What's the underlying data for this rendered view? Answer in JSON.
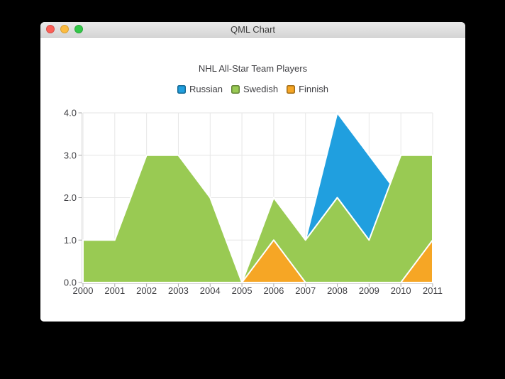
{
  "window": {
    "title": "QML Chart",
    "controls": [
      {
        "name": "close",
        "color": "#fc5f57"
      },
      {
        "name": "minimize",
        "color": "#fdbc40"
      },
      {
        "name": "zoom",
        "color": "#33c748"
      }
    ]
  },
  "chart_data": {
    "type": "area",
    "title": "NHL All-Star Team Players",
    "x": [
      2000,
      2001,
      2002,
      2003,
      2004,
      2005,
      2006,
      2007,
      2008,
      2009,
      2010,
      2011
    ],
    "series": [
      {
        "name": "Russian",
        "color": "#209fdf",
        "upper": [
          1,
          1,
          1,
          1,
          1,
          0,
          1,
          1,
          4,
          3,
          2,
          1
        ],
        "lower": [
          0,
          0,
          0,
          0,
          0,
          0,
          0,
          1,
          2,
          1,
          1,
          1
        ]
      },
      {
        "name": "Swedish",
        "color": "#99ca53",
        "upper": [
          1,
          1,
          3,
          3,
          2,
          0,
          2,
          1,
          2,
          1,
          3,
          3
        ],
        "lower": [
          0,
          0,
          0,
          0,
          0,
          0,
          0,
          0,
          0,
          0,
          0,
          0
        ]
      },
      {
        "name": "Finnish",
        "color": "#f6a625",
        "upper": [
          0,
          0,
          0,
          0,
          0,
          0,
          1,
          0,
          0,
          0,
          0,
          1
        ],
        "lower": [
          0,
          0,
          0,
          0,
          0,
          0,
          0,
          0,
          0,
          0,
          0,
          0
        ]
      }
    ],
    "xlim": [
      2000,
      2011
    ],
    "ylim": [
      0,
      4
    ],
    "x_tick_labels": [
      "2000",
      "2001",
      "2002",
      "2003",
      "2004",
      "2005",
      "2006",
      "2007",
      "2008",
      "2009",
      "2010",
      "2011"
    ],
    "y_tick_labels": [
      "0.0",
      "1.0",
      "2.0",
      "3.0",
      "4.0"
    ],
    "grid": true,
    "legend_position": "top",
    "colors": {
      "area_border": "#ffffff",
      "grid": "#e6e6e6",
      "axis_line": "#d9d9d9",
      "tick": "#a9a9a9",
      "label": "#404044"
    }
  }
}
